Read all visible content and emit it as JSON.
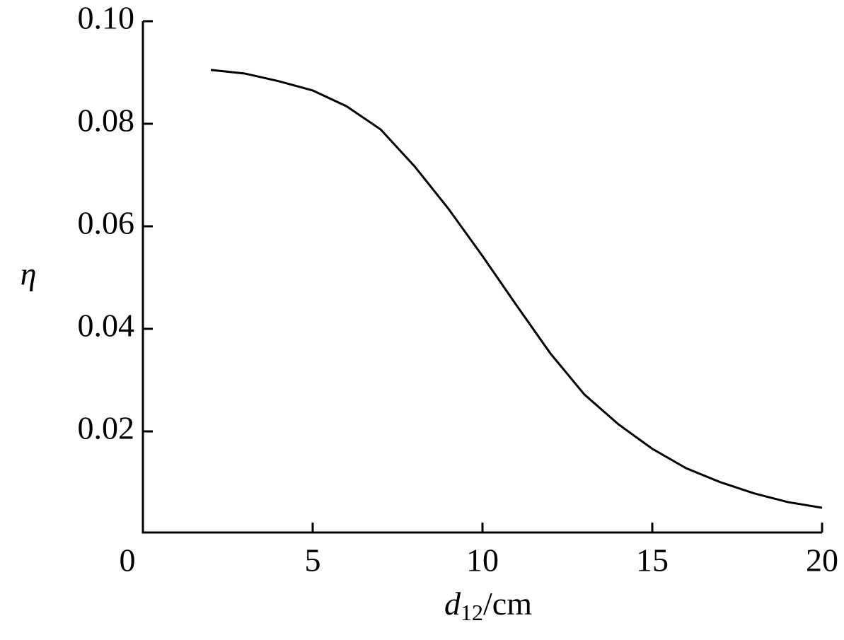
{
  "chart_data": {
    "type": "line",
    "x_label": {
      "symbol": "d",
      "subscript": "12",
      "unit": "/cm"
    },
    "y_label": "η",
    "x": [
      2,
      3,
      4,
      5,
      6,
      7,
      8,
      9,
      10,
      11,
      12,
      13,
      14,
      15,
      16,
      17,
      18,
      19,
      20
    ],
    "series": [
      {
        "color": "#000000",
        "values": [
          0.0905,
          0.0898,
          0.0883,
          0.0865,
          0.0834,
          0.0789,
          0.0717,
          0.0634,
          0.0542,
          0.0446,
          0.0352,
          0.0272,
          0.0214,
          0.0166,
          0.0128,
          0.0101,
          0.0079,
          0.0062,
          0.0051
        ]
      }
    ],
    "xlim": [
      0,
      20
    ],
    "xticks": [
      0,
      5,
      10,
      15,
      20
    ],
    "ylim": [
      0,
      0.1
    ],
    "yticks": [
      0.02,
      0.04,
      0.06,
      0.08,
      {
        "value": 0.1,
        "label": "0.10"
      }
    ]
  }
}
